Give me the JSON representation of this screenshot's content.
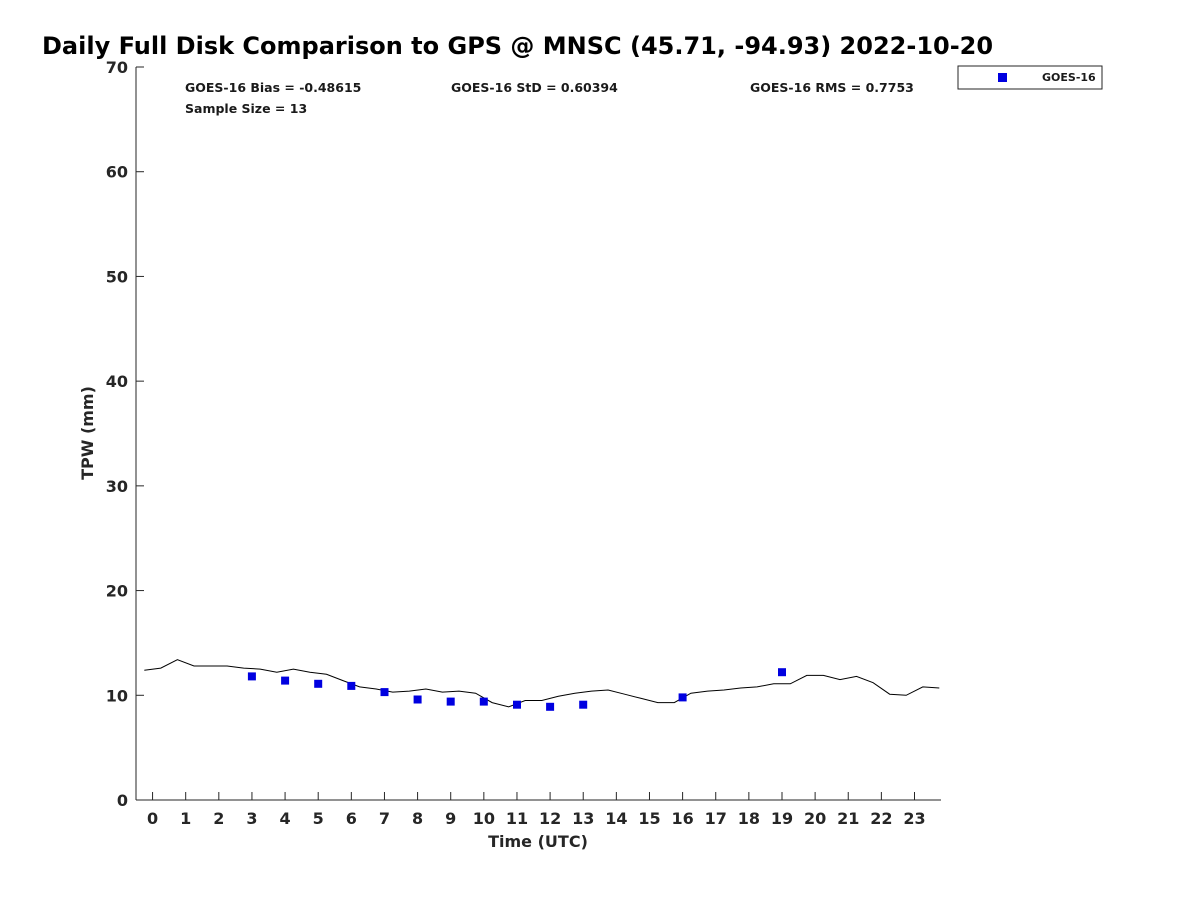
{
  "chart_data": {
    "type": "scatter",
    "title": "Daily Full Disk Comparison to GPS @ MNSC (45.71, -94.93) 2022-10-20",
    "xlabel": "Time (UTC)",
    "ylabel": "TPW (mm)",
    "xlim": [
      -0.5,
      23.8
    ],
    "ylim": [
      0,
      70
    ],
    "xticks": [
      0,
      1,
      2,
      3,
      4,
      5,
      6,
      7,
      8,
      9,
      10,
      11,
      12,
      13,
      14,
      15,
      16,
      17,
      18,
      19,
      20,
      21,
      22,
      23
    ],
    "yticks": [
      0,
      10,
      20,
      30,
      40,
      50,
      60,
      70
    ],
    "grid": false,
    "legend_position": "outside top-right",
    "stats": {
      "bias": "GOES-16 Bias = -0.48615",
      "std": "GOES-16 StD = 0.60394",
      "rms": "GOES-16 RMS = 0.7753",
      "sample_size": "Sample Size = 13"
    },
    "series": [
      {
        "name": "GOES-16",
        "kind": "scatter",
        "marker": "square",
        "color": "#0000e0",
        "x": [
          3,
          4,
          5,
          6,
          7,
          8,
          9,
          10,
          11,
          12,
          13,
          16,
          19
        ],
        "y": [
          11.8,
          11.4,
          11.1,
          10.9,
          10.3,
          9.6,
          9.4,
          9.4,
          9.1,
          8.9,
          9.1,
          9.8,
          12.2
        ]
      },
      {
        "kind": "line",
        "color": "#000000",
        "x": [
          -0.25,
          0.25,
          0.75,
          1.25,
          1.75,
          2.25,
          2.75,
          3.25,
          3.75,
          4.25,
          4.75,
          5.25,
          5.75,
          6.25,
          6.75,
          7.25,
          7.75,
          8.25,
          8.75,
          9.25,
          9.75,
          10.25,
          10.75,
          11.25,
          11.75,
          12.25,
          12.75,
          13.25,
          13.75,
          14.25,
          14.75,
          15.25,
          15.75,
          16.25,
          16.75,
          17.25,
          17.75,
          18.25,
          18.75,
          19.25,
          19.75,
          20.25,
          20.75,
          21.25,
          21.75,
          22.25,
          22.75,
          23.25,
          23.75
        ],
        "y": [
          12.4,
          12.6,
          13.4,
          12.8,
          12.8,
          12.8,
          12.6,
          12.5,
          12.2,
          12.5,
          12.2,
          12.0,
          11.4,
          10.8,
          10.6,
          10.3,
          10.4,
          10.6,
          10.3,
          10.4,
          10.2,
          9.3,
          8.9,
          9.5,
          9.5,
          9.9,
          10.2,
          10.4,
          10.5,
          10.1,
          9.7,
          9.3,
          9.3,
          10.2,
          10.4,
          10.5,
          10.7,
          10.8,
          11.1,
          11.1,
          11.9,
          11.9,
          11.5,
          11.8,
          11.2,
          10.1,
          10.0,
          10.8,
          10.7
        ]
      }
    ]
  }
}
